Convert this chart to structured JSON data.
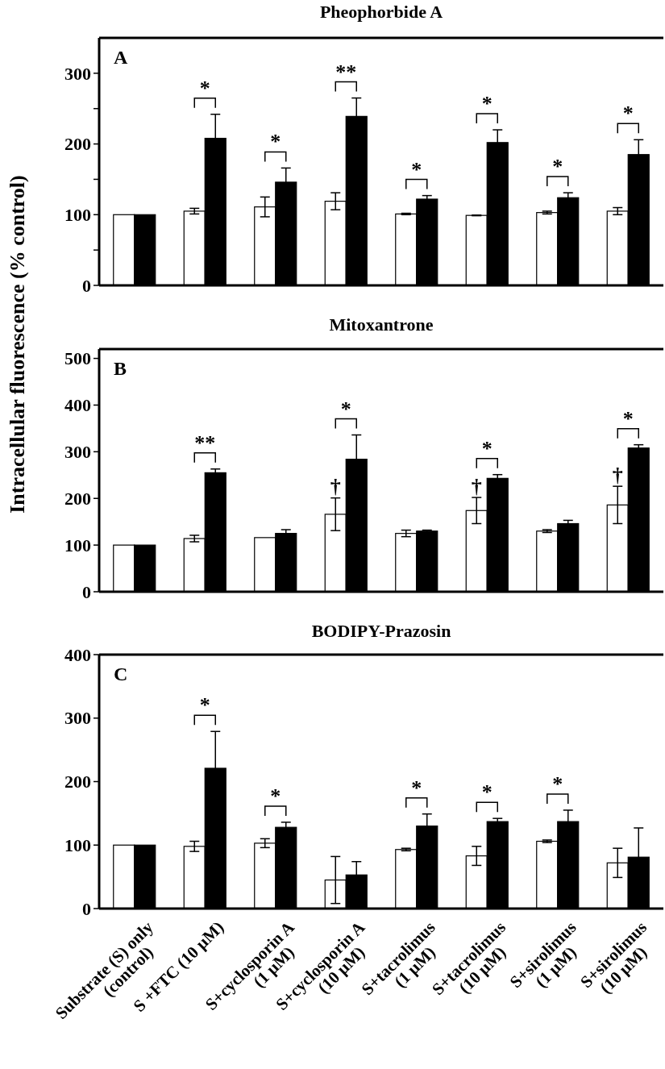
{
  "chart_data": [
    {
      "type": "bar",
      "title": "Pheophorbide A",
      "categories": [
        "Substrate (S) only\n(control)",
        "S +FTC (10 μM)",
        "S+cyclosporin A\n(1 μM)",
        "S+cyclosporin A\n(10 μM)",
        "S+tacrolimus\n(1 μM)",
        "S+tacrolimus\n(10 μM)",
        "S+sirolimus\n(1 μM)",
        "S+sirolimus\n(10 μM)"
      ],
      "series": [
        {
          "color": "#ffffff",
          "values": [
            100,
            105,
            111,
            119,
            101,
            99,
            103,
            105
          ],
          "errors": [
            null,
            4,
            14,
            12,
            1,
            0.5,
            2,
            5
          ]
        },
        {
          "color": "#000000",
          "values": [
            100,
            208,
            146,
            239,
            122,
            202,
            124,
            185
          ],
          "errors": [
            null,
            34,
            20,
            26,
            5,
            18,
            7,
            21
          ]
        }
      ],
      "ylim": [
        0,
        350
      ],
      "yticks": [
        0,
        {
          "value": 50,
          "label": null
        },
        100,
        {
          "value": 150,
          "label": null
        },
        200,
        {
          "value": 250,
          "label": null
        },
        300
      ],
      "tick_labels": "y",
      "grid": false,
      "legend": false,
      "annotations": [
        "A",
        {
          "text": "*",
          "x": "S +FTC (10 μM)",
          "y": 242
        },
        {
          "text": "*",
          "x": "S+cyclosporin A\n(1 μM)",
          "y": 166
        },
        {
          "text": "**",
          "x": "S+cyclosporin A\n(10 μM)",
          "y": 265
        },
        {
          "text": "*",
          "x": "S+tacrolimus\n(1 μM)",
          "y": 127
        },
        {
          "text": "*",
          "x": "S+tacrolimus\n(10 μM)",
          "y": 220
        },
        {
          "text": "*",
          "x": "S+sirolimus\n(1 μM)",
          "y": 131
        },
        {
          "text": "*",
          "x": "S+sirolimus\n(10 μM)",
          "y": 206
        }
      ]
    },
    {
      "type": "bar",
      "title": "Mitoxantrone",
      "ylabel": "Intracellular fluorescence (% control)",
      "categories": [
        "Substrate (S) only\n(control)",
        "S +FTC (10 μM)",
        "S+cyclosporin A\n(1 μM)",
        "S+cyclosporin A\n(10 μM)",
        "S+tacrolimus\n(1 μM)",
        "S+tacrolimus\n(10 μM)",
        "S+sirolimus\n(1 μM)",
        "S+sirolimus\n(10 μM)"
      ],
      "series": [
        {
          "color": "#ffffff",
          "values": [
            100,
            114,
            116,
            166,
            125,
            174,
            130,
            186
          ],
          "errors": [
            null,
            7,
            null,
            35,
            7,
            28,
            3,
            40
          ]
        },
        {
          "color": "#000000",
          "values": [
            100,
            255,
            125,
            284,
            130,
            243,
            146,
            308
          ],
          "errors": [
            null,
            8,
            8,
            52,
            2,
            8,
            7,
            7
          ]
        }
      ],
      "ylim": [
        0,
        520
      ],
      "yticks": [
        0,
        100,
        200,
        300,
        400,
        500
      ],
      "tick_labels": "y",
      "grid": false,
      "legend": false,
      "annotations": [
        "B",
        {
          "text": "**",
          "x": "S +FTC (10 μM)",
          "y": 263
        },
        {
          "text": "*",
          "x": "S+cyclosporin A\n(10 μM)",
          "y": 336
        },
        {
          "text": "*",
          "x": "S+tacrolimus\n(10 μM)",
          "y": 251
        },
        {
          "text": "*",
          "x": "S+sirolimus\n(10 μM)",
          "y": 315
        },
        {
          "text": "†",
          "x": "S+cyclosporin A\n(10 μM)",
          "y": 210
        },
        {
          "text": "†",
          "x": "S+tacrolimus\n(10 μM)",
          "y": 210
        },
        {
          "text": "†",
          "x": "S+sirolimus\n(10 μM)",
          "y": 235
        }
      ]
    },
    {
      "type": "bar",
      "title": "BODIPY-Prazosin",
      "categories": [
        "Substrate (S) only\n(control)",
        "S +FTC (10 μM)",
        "S+cyclosporin A\n(1 μM)",
        "S+cyclosporin A\n(10 μM)",
        "S+tacrolimus\n(1 μM)",
        "S+tacrolimus\n(10 μM)",
        "S+sirolimus\n(1 μM)",
        "S+sirolimus\n(10 μM)"
      ],
      "series": [
        {
          "color": "#ffffff",
          "values": [
            100,
            98,
            103,
            45,
            93,
            83,
            106,
            72
          ],
          "errors": [
            null,
            8,
            7,
            37,
            2,
            15,
            2,
            23
          ]
        },
        {
          "color": "#000000",
          "values": [
            100,
            221,
            128,
            53,
            130,
            137,
            137,
            81
          ],
          "errors": [
            null,
            58,
            8,
            21,
            19,
            5,
            18,
            46
          ]
        }
      ],
      "ylim": [
        0,
        400
      ],
      "yticks": [
        0,
        100,
        200,
        300,
        400
      ],
      "grid": false,
      "legend": false,
      "annotations": [
        "C",
        {
          "text": "*",
          "x": "S +FTC (10 μM)",
          "y": 279
        },
        {
          "text": "*",
          "x": "S+cyclosporin A\n(1 μM)",
          "y": 136
        },
        {
          "text": "*",
          "x": "S+tacrolimus\n(1 μM)",
          "y": 149
        },
        {
          "text": "*",
          "x": "S+tacrolimus\n(10 μM)",
          "y": 142
        },
        {
          "text": "*",
          "x": "S+sirolimus\n(1 μM)",
          "y": 155
        }
      ]
    }
  ]
}
